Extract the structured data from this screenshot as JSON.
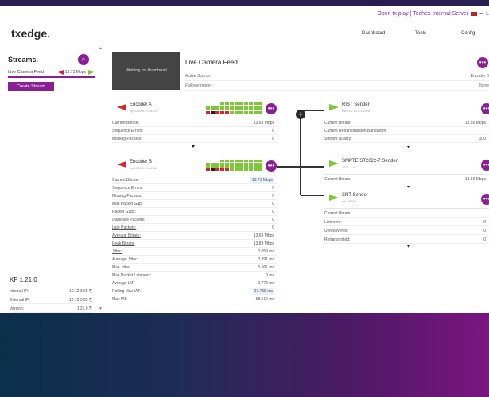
{
  "header": {
    "topline": "Open tx play | Techex Internal Server",
    "topline_tail": "L",
    "logo": "txedge",
    "logo_dot": ".",
    "nav": [
      "Dashboard",
      "Tools",
      "Config"
    ]
  },
  "sidebar": {
    "title": "Streams.",
    "search_icon": "search-icon",
    "stream": {
      "name": "Live Camera Feed",
      "rate": "13.71 Mbps"
    },
    "create_label": "Create Stream",
    "version": "KF 1.21.0",
    "info": [
      {
        "label": "Internal IP:",
        "value": "10.12.3.65"
      },
      {
        "label": "External IP:",
        "value": "10.12.3.65"
      },
      {
        "label": "Version:",
        "value": "1.21.0"
      }
    ]
  },
  "feed": {
    "thumb_text": "Waiting for thumbnail",
    "title": "Live Camera Feed",
    "rows": [
      {
        "label": "Active Source:",
        "value": "Encoder B"
      },
      {
        "label": "Failover mode:",
        "value": "None"
      }
    ]
  },
  "encoder_a": {
    "name": "Encoder A",
    "sub": "rtp://239.9.9.9:4100",
    "rows": [
      {
        "label": "Current Bitrate:",
        "value": "13.68 Mbps"
      },
      {
        "label": "Sequence Errors:",
        "value": "0"
      },
      {
        "label": "Missing Packets:",
        "value": "0"
      }
    ]
  },
  "encoder_b": {
    "name": "Encoder B",
    "sub": "rtp://239.9.9.9:4110",
    "rows": [
      {
        "label": "Current Bitrate:",
        "value": "13.71 Mbps"
      },
      {
        "label": "Sequence Errors:",
        "value": "0"
      },
      {
        "label": "Missing Packets:",
        "value": "0"
      },
      {
        "label": "Max Packet Gap:",
        "value": "0"
      },
      {
        "label": "Packet Gaps:",
        "value": "0"
      },
      {
        "label": "Duplicate Packets:",
        "value": "0"
      },
      {
        "label": "Late Packets:",
        "value": "0"
      },
      {
        "label": "Average Bitrate:",
        "value": "13.68 Mbps"
      },
      {
        "label": "Peak Bitrate:",
        "value": "13.83 Mbps"
      },
      {
        "label": "Jitter:",
        "value": "0.059 ms"
      },
      {
        "label": "Average Jitter:",
        "value": "0.391 ms"
      },
      {
        "label": "Max Jitter:",
        "value": "5.061 ms"
      },
      {
        "label": "Max Packet Lateness:",
        "value": "0 ms"
      },
      {
        "label": "Average IAT:",
        "value": "0.770 ms"
      },
      {
        "label": "Rolling Max IAT:",
        "value": "27.765 ms"
      },
      {
        "label": "Max IAT:",
        "value": "68.514 ms"
      }
    ]
  },
  "rist": {
    "name": "RIST Sender",
    "sub": "rist://10.10.0.1:1976",
    "rows": [
      {
        "label": "Current Bitrate:",
        "value": "13.50 Mbps"
      },
      {
        "label": "Current Retransmission Bandwidth:",
        "value": ""
      },
      {
        "label": "Stream Quality:",
        "value": "100"
      }
    ]
  },
  "smpte": {
    "name": "SMPTE ST2022-7 Sender",
    "sub": "2022-7://",
    "rows": [
      {
        "label": "Current Bitrate:",
        "value": "13.66 Mbps"
      }
    ]
  },
  "srt": {
    "name": "SRT Sender",
    "sub": "srt://:9000",
    "rows": [
      {
        "label": "Current Bitrate:",
        "value": ""
      },
      {
        "label": "Listeners:",
        "value": "0"
      },
      {
        "label": "Unrecovered:",
        "value": "0"
      },
      {
        "label": "Retransmitted:",
        "value": "0"
      }
    ]
  },
  "colors": {
    "accent": "#8a1f96",
    "encoder_red": "#d9232e",
    "sender_green": "#7ec837"
  }
}
